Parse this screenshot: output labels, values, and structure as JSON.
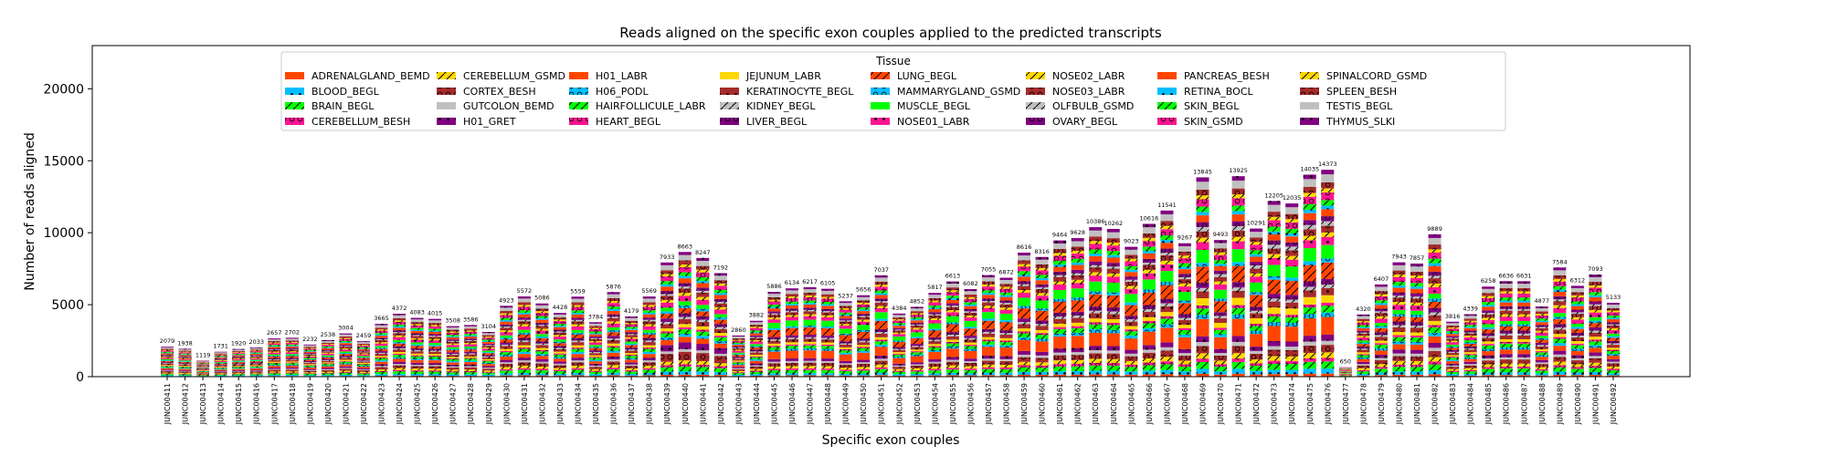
{
  "chart_data": {
    "type": "bar",
    "stacked": true,
    "title": "Reads aligned on the specific exon couples applied to the predicted transcripts",
    "xlabel": "Specific exon couples",
    "ylabel": "Number of reads aligned",
    "ylim": [
      0,
      23000
    ],
    "yticks": [
      0,
      5000,
      10000,
      15000,
      20000
    ],
    "grid": false,
    "legend": {
      "title": "Tissue",
      "placement": "top-center",
      "columns": 8
    },
    "series": [
      {
        "name": "ADRENALGLAND_BEMD",
        "color": "#ff4500",
        "hatch": "none"
      },
      {
        "name": "BLOOD_BEGL",
        "color": "#00bfff",
        "hatch": "dot"
      },
      {
        "name": "BRAIN_BEGL",
        "color": "#00ff00",
        "hatch": "slash"
      },
      {
        "name": "CEREBELLUM_BESH",
        "color": "#ff1493",
        "hatch": "ring"
      },
      {
        "name": "CEREBELLUM_GSMD",
        "color": "#ffd700",
        "hatch": "slash"
      },
      {
        "name": "CORTEX_BESH",
        "color": "#a52a2a",
        "hatch": "ring"
      },
      {
        "name": "GUTCOLON_BEMD",
        "color": "#c0c0c0",
        "hatch": "none"
      },
      {
        "name": "H01_GRET",
        "color": "#800080",
        "hatch": "dot"
      },
      {
        "name": "H01_LABR",
        "color": "#ff4500",
        "hatch": "none"
      },
      {
        "name": "H06_PODL",
        "color": "#00bfff",
        "hatch": "ring"
      },
      {
        "name": "HAIRFOLLICULE_LABR",
        "color": "#00ff00",
        "hatch": "slash"
      },
      {
        "name": "HEART_BEGL",
        "color": "#ff1493",
        "hatch": "ring"
      },
      {
        "name": "JEJUNUM_LABR",
        "color": "#ffd700",
        "hatch": "none"
      },
      {
        "name": "KERATINOCYTE_BEGL",
        "color": "#a52a2a",
        "hatch": "dot"
      },
      {
        "name": "KIDNEY_BEGL",
        "color": "#c0c0c0",
        "hatch": "slash"
      },
      {
        "name": "LIVER_BEGL",
        "color": "#800080",
        "hatch": "ring"
      },
      {
        "name": "LUNG_BEGL",
        "color": "#ff4500",
        "hatch": "slash"
      },
      {
        "name": "MAMMARYGLAND_GSMD",
        "color": "#00bfff",
        "hatch": "ring"
      },
      {
        "name": "MUSCLE_BEGL",
        "color": "#00ff00",
        "hatch": "none"
      },
      {
        "name": "NOSE01_LABR",
        "color": "#ff1493",
        "hatch": "dot"
      },
      {
        "name": "NOSE02_LABR",
        "color": "#ffd700",
        "hatch": "slash"
      },
      {
        "name": "NOSE03_LABR",
        "color": "#a52a2a",
        "hatch": "ring"
      },
      {
        "name": "OLFBULB_GSMD",
        "color": "#c0c0c0",
        "hatch": "slash"
      },
      {
        "name": "OVARY_BEGL",
        "color": "#800080",
        "hatch": "ring"
      },
      {
        "name": "PANCREAS_BESH",
        "color": "#ff4500",
        "hatch": "none"
      },
      {
        "name": "RETINA_BOCL",
        "color": "#00bfff",
        "hatch": "dot"
      },
      {
        "name": "SKIN_BEGL",
        "color": "#00ff00",
        "hatch": "slash"
      },
      {
        "name": "SKIN_GSMD",
        "color": "#ff1493",
        "hatch": "ring"
      },
      {
        "name": "SPINALCORD_GSMD",
        "color": "#ffd700",
        "hatch": "slash"
      },
      {
        "name": "SPLEEN_BESH",
        "color": "#a52a2a",
        "hatch": "ring"
      },
      {
        "name": "TESTIS_BEGL",
        "color": "#c0c0c0",
        "hatch": "none"
      },
      {
        "name": "THYMUS_SLKI",
        "color": "#800080",
        "hatch": "dot"
      }
    ],
    "categories": [
      "JUNC00411",
      "JUNC00412",
      "JUNC00413",
      "JUNC00414",
      "JUNC00415",
      "JUNC00416",
      "JUNC00417",
      "JUNC00418",
      "JUNC00419",
      "JUNC00420",
      "JUNC00421",
      "JUNC00422",
      "JUNC00423",
      "JUNC00424",
      "JUNC00425",
      "JUNC00426",
      "JUNC00427",
      "JUNC00428",
      "JUNC00429",
      "JUNC00430",
      "JUNC00431",
      "JUNC00432",
      "JUNC00433",
      "JUNC00434",
      "JUNC00435",
      "JUNC00436",
      "JUNC00437",
      "JUNC00438",
      "JUNC00439",
      "JUNC00440",
      "JUNC00441",
      "JUNC00442",
      "JUNC00443",
      "JUNC00444",
      "JUNC00445",
      "JUNC00446",
      "JUNC00447",
      "JUNC00448",
      "JUNC00449",
      "JUNC00450",
      "JUNC00451",
      "JUNC00452",
      "JUNC00453",
      "JUNC00454",
      "JUNC00455",
      "JUNC00456",
      "JUNC00457",
      "JUNC00458",
      "JUNC00459",
      "JUNC00460",
      "JUNC00461",
      "JUNC00462",
      "JUNC00463",
      "JUNC00464",
      "JUNC00465",
      "JUNC00466",
      "JUNC00467",
      "JUNC00468",
      "JUNC00469",
      "JUNC00470",
      "JUNC00471",
      "JUNC00472",
      "JUNC00473",
      "JUNC00474",
      "JUNC00475",
      "JUNC00476",
      "JUNC00477",
      "JUNC00478",
      "JUNC00479",
      "JUNC00480",
      "JUNC00481",
      "JUNC00482",
      "JUNC00483",
      "JUNC00484",
      "JUNC00485",
      "JUNC00486",
      "JUNC00487",
      "JUNC00488",
      "JUNC00489",
      "JUNC00490",
      "JUNC00491",
      "JUNC00492"
    ],
    "totals": [
      2079,
      1938,
      1119,
      1731,
      1920,
      2033,
      2657,
      2702,
      2232,
      2538,
      3004,
      2459,
      3665,
      4372,
      4083,
      4015,
      3508,
      3586,
      3104,
      4923,
      5572,
      5086,
      4428,
      5559,
      3784,
      5876,
      4179,
      5569,
      7933,
      8663,
      8247,
      7192,
      2860,
      3882,
      5886,
      6134,
      6217,
      6105,
      5237,
      5656,
      7037,
      4384,
      4852,
      5817,
      6613,
      6082,
      7055,
      6872,
      8616,
      8316,
      9464,
      9628,
      10386,
      10262,
      9023,
      10616,
      11541,
      9267,
      13845,
      9493,
      13925,
      10291,
      12205,
      12035,
      14035,
      14373,
      650,
      4320,
      6407,
      7943,
      7857,
      9889,
      3816,
      4339,
      6258,
      6636,
      6631,
      4877,
      7584,
      6312,
      7093,
      5133
    ],
    "data_labels": [
      "2079",
      "1938",
      "1119",
      "1731",
      "1920",
      "2033",
      "2657",
      "2702",
      "2232",
      "2538",
      "3004",
      "2459",
      "3665",
      "4372",
      "4083",
      "4015",
      "3508",
      "3586",
      "3104",
      "4923",
      "5572",
      "5086",
      "4428",
      "5559",
      "3784",
      "5876",
      "4179",
      "5569",
      "7933",
      "8663",
      "8247",
      "7192",
      "2860",
      "3882",
      "5886",
      "6134",
      "6217",
      "6105",
      "5237",
      "5656",
      "7037",
      "4384",
      "4852",
      "5817",
      "6613",
      "6082",
      "7055",
      "6872",
      "8616",
      "8316",
      "9464",
      "9628",
      "10386",
      "10262",
      "9023",
      "10616",
      "11541",
      "9267",
      "13845",
      "9493",
      "13925",
      "10291",
      "12205",
      "12035",
      "14035",
      "14373",
      "650",
      "4320",
      "6407",
      "7943",
      "7857",
      "9889",
      "3816",
      "4339",
      "6258",
      "6636",
      "6631",
      "4877",
      "7584",
      "6312",
      "7093",
      "5133"
    ]
  }
}
